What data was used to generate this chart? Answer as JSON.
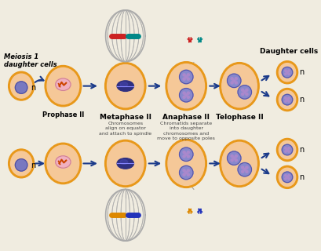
{
  "bg_color": "#f0ece0",
  "cell_outer_color": "#e8981a",
  "cell_inner_color": "#f5c898",
  "nucleus_color": "#7878c0",
  "nucleus_edge_color": "#5050a0",
  "spindle_color": "#aaaaaa",
  "arrow_color": "#1a3a8a",
  "chr_red": "#cc2222",
  "chr_teal": "#008888",
  "chr_orange": "#dd8800",
  "chr_blue": "#2233bb",
  "labels": {
    "meiosis1": "Meiosis 1\ndaughter cells",
    "prophaseII": "Prophase II",
    "metaphaseII": "Metaphase II",
    "metaphaseII_sub": "Chromosomes\nalign on equator\nand attach to spindle",
    "anaphaseII": "Anaphase II",
    "anaphaseII_sub": "Chromatids separate\ninto daughter\nchromosomes and\nmove to opposite poles",
    "telophaseII": "Telophase II",
    "daughter": "Daughter cells"
  }
}
